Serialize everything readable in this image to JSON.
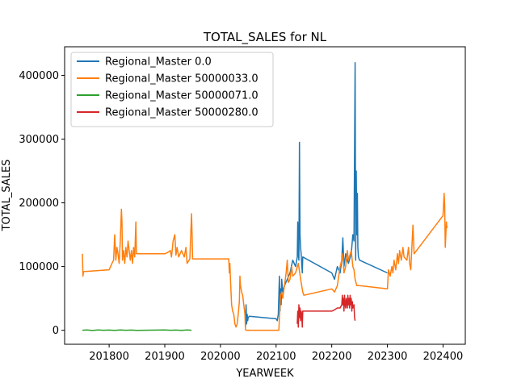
{
  "chart_data": {
    "type": "line",
    "title": "TOTAL_SALES for NL",
    "xlabel": "YEARWEEK",
    "ylabel": "TOTAL_SALES",
    "xlim": [
      201720,
      202440
    ],
    "ylim": [
      -22000,
      445000
    ],
    "xticks": [
      201800,
      201900,
      202000,
      202100,
      202200,
      202300,
      202400
    ],
    "yticks": [
      0,
      100000,
      200000,
      300000,
      400000
    ],
    "legend": "top-left",
    "grid": false,
    "series": [
      {
        "name": "Regional_Master 0.0",
        "color": "#1f77b4",
        "points": [
          [
            202045,
            5000
          ],
          [
            202046,
            40000
          ],
          [
            202047,
            10000
          ],
          [
            202048,
            25000
          ],
          [
            202049,
            15000
          ],
          [
            202050,
            20000
          ],
          [
            202052,
            22000
          ],
          [
            202100,
            18000
          ],
          [
            202102,
            15000
          ],
          [
            202104,
            25000
          ],
          [
            202106,
            85000
          ],
          [
            202107,
            30000
          ],
          [
            202108,
            65000
          ],
          [
            202109,
            40000
          ],
          [
            202110,
            80000
          ],
          [
            202112,
            60000
          ],
          [
            202115,
            70000
          ],
          [
            202120,
            80000
          ],
          [
            202125,
            90000
          ],
          [
            202130,
            110000
          ],
          [
            202135,
            100000
          ],
          [
            202138,
            115000
          ],
          [
            202139,
            170000
          ],
          [
            202140,
            120000
          ],
          [
            202141,
            110000
          ],
          [
            202142,
            295000
          ],
          [
            202143,
            150000
          ],
          [
            202144,
            130000
          ],
          [
            202145,
            120000
          ],
          [
            202146,
            105000
          ],
          [
            202147,
            90000
          ],
          [
            202148,
            115000
          ],
          [
            202200,
            90000
          ],
          [
            202205,
            80000
          ],
          [
            202210,
            100000
          ],
          [
            202215,
            90000
          ],
          [
            202218,
            110000
          ],
          [
            202220,
            145000
          ],
          [
            202222,
            100000
          ],
          [
            202225,
            120000
          ],
          [
            202228,
            110000
          ],
          [
            202230,
            105000
          ],
          [
            202235,
            120000
          ],
          [
            202238,
            150000
          ],
          [
            202240,
            140000
          ],
          [
            202242,
            420000
          ],
          [
            202243,
            110000
          ],
          [
            202244,
            250000
          ],
          [
            202245,
            150000
          ],
          [
            202246,
            215000
          ],
          [
            202247,
            130000
          ],
          [
            202248,
            115000
          ],
          [
            202250,
            110000
          ],
          [
            202300,
            90000
          ]
        ]
      },
      {
        "name": "Regional_Master 50000033.0",
        "color": "#ff7f0e",
        "points": [
          [
            201752,
            120000
          ],
          [
            201753,
            85000
          ],
          [
            201754,
            92000
          ],
          [
            201800,
            95000
          ],
          [
            201805,
            105000
          ],
          [
            201808,
            110000
          ],
          [
            201810,
            150000
          ],
          [
            201812,
            110000
          ],
          [
            201814,
            130000
          ],
          [
            201816,
            120000
          ],
          [
            201818,
            105000
          ],
          [
            201820,
            140000
          ],
          [
            201822,
            190000
          ],
          [
            201823,
            170000
          ],
          [
            201824,
            110000
          ],
          [
            201826,
            125000
          ],
          [
            201828,
            105000
          ],
          [
            201830,
            130000
          ],
          [
            201832,
            115000
          ],
          [
            201834,
            140000
          ],
          [
            201836,
            125000
          ],
          [
            201838,
            110000
          ],
          [
            201840,
            125000
          ],
          [
            201842,
            105000
          ],
          [
            201844,
            130000
          ],
          [
            201846,
            115000
          ],
          [
            201848,
            170000
          ],
          [
            201849,
            120000
          ],
          [
            201850,
            120000
          ],
          [
            201900,
            120000
          ],
          [
            201905,
            122000
          ],
          [
            201910,
            125000
          ],
          [
            201912,
            115000
          ],
          [
            201915,
            140000
          ],
          [
            201918,
            150000
          ],
          [
            201920,
            118000
          ],
          [
            201922,
            130000
          ],
          [
            201925,
            115000
          ],
          [
            201930,
            125000
          ],
          [
            201935,
            115000
          ],
          [
            201938,
            130000
          ],
          [
            201940,
            105000
          ],
          [
            201945,
            112000
          ],
          [
            201948,
            183000
          ],
          [
            201949,
            150000
          ],
          [
            201950,
            112000
          ],
          [
            202000,
            112000
          ],
          [
            202010,
            112000
          ],
          [
            202015,
            112000
          ],
          [
            202016,
            90000
          ],
          [
            202017,
            105000
          ],
          [
            202018,
            80000
          ],
          [
            202020,
            40000
          ],
          [
            202022,
            30000
          ],
          [
            202024,
            25000
          ],
          [
            202026,
            10000
          ],
          [
            202028,
            5000
          ],
          [
            202030,
            10000
          ],
          [
            202032,
            25000
          ],
          [
            202034,
            45000
          ],
          [
            202035,
            85000
          ],
          [
            202036,
            70000
          ],
          [
            202038,
            60000
          ],
          [
            202040,
            55000
          ],
          [
            202042,
            40000
          ],
          [
            202044,
            25000
          ],
          [
            202045,
            1000
          ],
          [
            202046,
            0
          ],
          [
            202047,
            0
          ],
          [
            202050,
            0
          ],
          [
            202100,
            0
          ],
          [
            202105,
            0
          ],
          [
            202106,
            20000
          ],
          [
            202108,
            55000
          ],
          [
            202110,
            60000
          ],
          [
            202112,
            50000
          ],
          [
            202115,
            70000
          ],
          [
            202118,
            90000
          ],
          [
            202120,
            110000
          ],
          [
            202122,
            75000
          ],
          [
            202125,
            80000
          ],
          [
            202128,
            100000
          ],
          [
            202130,
            85000
          ],
          [
            202135,
            90000
          ],
          [
            202140,
            105000
          ],
          [
            202145,
            75000
          ],
          [
            202148,
            60000
          ],
          [
            202150,
            55000
          ],
          [
            202200,
            65000
          ],
          [
            202205,
            60000
          ],
          [
            202210,
            70000
          ],
          [
            202215,
            100000
          ],
          [
            202218,
            110000
          ],
          [
            202220,
            120000
          ],
          [
            202222,
            90000
          ],
          [
            202225,
            100000
          ],
          [
            202228,
            125000
          ],
          [
            202230,
            110000
          ],
          [
            202235,
            125000
          ],
          [
            202238,
            100000
          ],
          [
            202240,
            95000
          ],
          [
            202242,
            80000
          ],
          [
            202245,
            70000
          ],
          [
            202250,
            70000
          ],
          [
            202300,
            65000
          ],
          [
            202302,
            95000
          ],
          [
            202305,
            85000
          ],
          [
            202308,
            100000
          ],
          [
            202310,
            90000
          ],
          [
            202312,
            110000
          ],
          [
            202315,
            95000
          ],
          [
            202318,
            120000
          ],
          [
            202320,
            105000
          ],
          [
            202322,
            125000
          ],
          [
            202325,
            110000
          ],
          [
            202328,
            130000
          ],
          [
            202330,
            115000
          ],
          [
            202335,
            110000
          ],
          [
            202338,
            130000
          ],
          [
            202340,
            105000
          ],
          [
            202342,
            95000
          ],
          [
            202345,
            150000
          ],
          [
            202346,
            165000
          ],
          [
            202348,
            120000
          ],
          [
            202400,
            180000
          ],
          [
            202402,
            215000
          ],
          [
            202403,
            195000
          ],
          [
            202404,
            130000
          ],
          [
            202406,
            170000
          ],
          [
            202407,
            160000
          ]
        ]
      },
      {
        "name": "Regional_Master 50000071.0",
        "color": "#2ca02c",
        "points": [
          [
            201752,
            0
          ],
          [
            201760,
            500
          ],
          [
            201770,
            -300
          ],
          [
            201780,
            400
          ],
          [
            201790,
            0
          ],
          [
            201800,
            300
          ],
          [
            201810,
            -200
          ],
          [
            201820,
            500
          ],
          [
            201830,
            0
          ],
          [
            201840,
            300
          ],
          [
            201850,
            -200
          ],
          [
            201900,
            400
          ],
          [
            201910,
            0
          ],
          [
            201920,
            300
          ],
          [
            201930,
            -200
          ],
          [
            201940,
            400
          ],
          [
            201948,
            0
          ]
        ]
      },
      {
        "name": "Regional_Master 50000280.0",
        "color": "#d62728",
        "points": [
          [
            202138,
            10000
          ],
          [
            202139,
            30000
          ],
          [
            202140,
            5000
          ],
          [
            202141,
            40000
          ],
          [
            202142,
            20000
          ],
          [
            202143,
            35000
          ],
          [
            202144,
            15000
          ],
          [
            202145,
            30000
          ],
          [
            202146,
            25000
          ],
          [
            202147,
            5000
          ],
          [
            202148,
            30000
          ],
          [
            202200,
            30000
          ],
          [
            202205,
            32000
          ],
          [
            202210,
            35000
          ],
          [
            202215,
            35000
          ],
          [
            202218,
            40000
          ],
          [
            202219,
            55000
          ],
          [
            202220,
            40000
          ],
          [
            202221,
            50000
          ],
          [
            202222,
            30000
          ],
          [
            202223,
            55000
          ],
          [
            202224,
            40000
          ],
          [
            202225,
            35000
          ],
          [
            202226,
            50000
          ],
          [
            202227,
            45000
          ],
          [
            202228,
            35000
          ],
          [
            202229,
            55000
          ],
          [
            202230,
            40000
          ],
          [
            202231,
            50000
          ],
          [
            202232,
            35000
          ],
          [
            202233,
            55000
          ],
          [
            202234,
            40000
          ],
          [
            202235,
            50000
          ],
          [
            202236,
            30000
          ],
          [
            202237,
            45000
          ],
          [
            202238,
            35000
          ],
          [
            202240,
            40000
          ],
          [
            202241,
            20000
          ],
          [
            202242,
            15000
          ]
        ]
      }
    ]
  }
}
